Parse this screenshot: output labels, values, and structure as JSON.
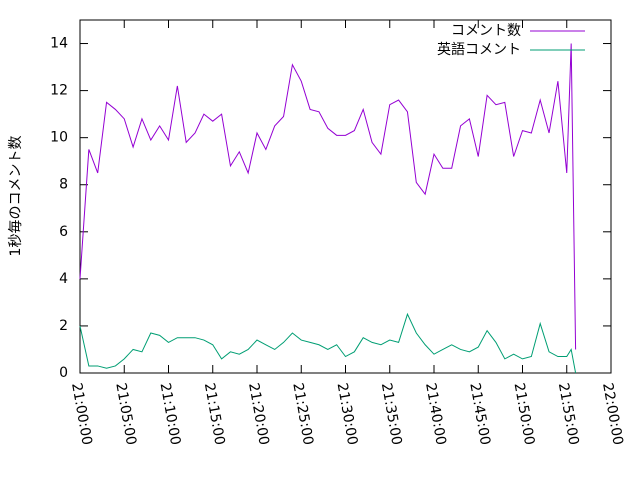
{
  "chart_data": {
    "type": "line",
    "y_label": "1秒毎のコメント数",
    "x": [
      "21:00:00",
      "21:01:00",
      "21:02:00",
      "21:03:00",
      "21:04:00",
      "21:05:00",
      "21:06:00",
      "21:07:00",
      "21:08:00",
      "21:09:00",
      "21:10:00",
      "21:11:00",
      "21:12:00",
      "21:13:00",
      "21:14:00",
      "21:15:00",
      "21:16:00",
      "21:17:00",
      "21:18:00",
      "21:19:00",
      "21:20:00",
      "21:21:00",
      "21:22:00",
      "21:23:00",
      "21:24:00",
      "21:25:00",
      "21:26:00",
      "21:27:00",
      "21:28:00",
      "21:29:00",
      "21:30:00",
      "21:31:00",
      "21:32:00",
      "21:33:00",
      "21:34:00",
      "21:35:00",
      "21:36:00",
      "21:37:00",
      "21:38:00",
      "21:39:00",
      "21:40:00",
      "21:41:00",
      "21:42:00",
      "21:43:00",
      "21:44:00",
      "21:45:00",
      "21:46:00",
      "21:47:00",
      "21:48:00",
      "21:49:00",
      "21:50:00",
      "21:51:00",
      "21:52:00",
      "21:53:00",
      "21:54:00",
      "21:55:00",
      "21:55:30",
      "21:56:00"
    ],
    "series": [
      {
        "name": "コメント数",
        "color": "#9400d3",
        "values": [
          4.0,
          9.5,
          8.5,
          11.5,
          11.2,
          10.8,
          9.6,
          10.8,
          9.9,
          10.5,
          9.9,
          12.2,
          9.8,
          10.2,
          11.0,
          10.7,
          11.0,
          8.8,
          9.4,
          8.5,
          10.2,
          9.5,
          10.5,
          10.9,
          13.1,
          12.4,
          11.2,
          11.1,
          10.4,
          10.1,
          10.1,
          10.3,
          11.2,
          9.8,
          9.3,
          11.4,
          11.6,
          11.1,
          8.1,
          7.6,
          9.3,
          8.7,
          8.7,
          10.5,
          10.8,
          9.2,
          11.8,
          11.4,
          11.5,
          9.2,
          10.3,
          10.2,
          11.6,
          10.2,
          12.4,
          8.5,
          14.0,
          1.0
        ]
      },
      {
        "name": "英語コメント",
        "color": "#009e73",
        "values": [
          2.0,
          0.3,
          0.3,
          0.2,
          0.3,
          0.6,
          1.0,
          0.9,
          1.7,
          1.6,
          1.3,
          1.5,
          1.5,
          1.5,
          1.4,
          1.2,
          0.6,
          0.9,
          0.8,
          1.0,
          1.4,
          1.2,
          1.0,
          1.3,
          1.7,
          1.4,
          1.3,
          1.2,
          1.0,
          1.2,
          0.7,
          0.9,
          1.5,
          1.3,
          1.2,
          1.4,
          1.3,
          2.5,
          1.7,
          1.2,
          0.8,
          1.0,
          1.2,
          1.0,
          0.9,
          1.1,
          1.8,
          1.3,
          0.6,
          0.8,
          0.6,
          0.7,
          2.1,
          0.9,
          0.7,
          0.7,
          1.0,
          0.0
        ]
      }
    ],
    "xlim": [
      "21:00:00",
      "22:00:00"
    ],
    "xticks": [
      "21:00:00",
      "21:05:00",
      "21:10:00",
      "21:15:00",
      "21:20:00",
      "21:25:00",
      "21:30:00",
      "21:35:00",
      "21:40:00",
      "21:45:00",
      "21:50:00",
      "21:55:00",
      "22:00:00"
    ],
    "ylim": [
      0,
      15
    ],
    "yticks": [
      0,
      2,
      4,
      6,
      8,
      10,
      12,
      14
    ],
    "legend": "top-right"
  }
}
